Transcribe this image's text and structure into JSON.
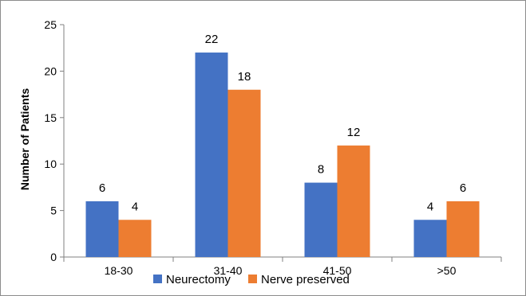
{
  "chart_data": {
    "type": "bar",
    "title": "",
    "xlabel": "",
    "ylabel": "Number of Patients",
    "ylim": [
      0,
      25
    ],
    "yticks": [
      0,
      5,
      10,
      15,
      20,
      25
    ],
    "grid": false,
    "legend_position": "bottom",
    "categories": [
      "18-30",
      "31-40",
      "41-50",
      ">50"
    ],
    "series": [
      {
        "name": "Neurectomy",
        "values": [
          6,
          22,
          8,
          4
        ],
        "color": "#4472C4"
      },
      {
        "name": "Nerve preserved",
        "values": [
          4,
          18,
          12,
          6
        ],
        "color": "#ED7D31"
      }
    ]
  }
}
